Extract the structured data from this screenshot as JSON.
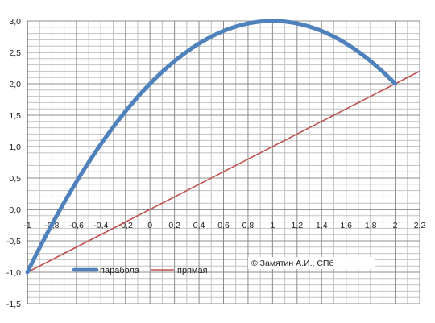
{
  "chart_data": {
    "type": "line",
    "xlim": [
      -1,
      2.2
    ],
    "ylim": [
      -1.5,
      3.0
    ],
    "x_ticks": [
      "-1",
      "-0,8",
      "-0,6",
      "-0,4",
      "-0,2",
      "0",
      "0,2",
      "0,4",
      "0,6",
      "0,8",
      "1",
      "1,2",
      "1,4",
      "1,6",
      "1,8",
      "2",
      "2,2"
    ],
    "y_ticks": [
      "3,0",
      "2,5",
      "2,0",
      "1,5",
      "1,0",
      "0,5",
      "0,0",
      "-0,5",
      "-1,0",
      "-1,5"
    ],
    "grid": true,
    "legend_position": "bottom-left",
    "series": [
      {
        "name": "парабола",
        "color": "#4f81bd",
        "x": [
          -1,
          -0.8,
          -0.6,
          -0.4,
          -0.2,
          0,
          0.2,
          0.4,
          0.6,
          0.8,
          1,
          1.2,
          1.4,
          1.6,
          1.8,
          2
        ],
        "y": [
          -1,
          -0.24,
          0.44,
          1.04,
          1.56,
          2,
          2.36,
          2.64,
          2.84,
          2.96,
          3,
          2.96,
          2.84,
          2.64,
          2.36,
          2
        ]
      },
      {
        "name": "прямая",
        "color": "#c0504d",
        "x": [
          -1,
          2.2
        ],
        "y": [
          -1,
          2.2
        ]
      }
    ],
    "annotation": "© Замятин А.И., СПб"
  }
}
